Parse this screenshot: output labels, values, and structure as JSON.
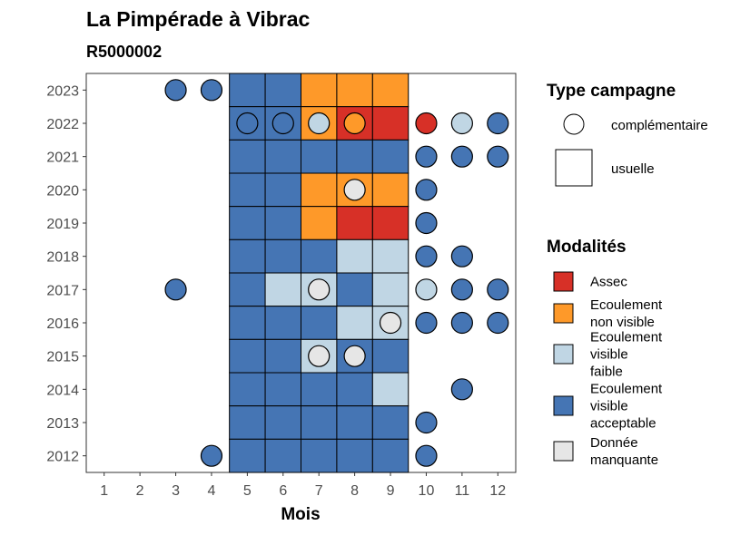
{
  "colors": {
    "Assec": "#d73027",
    "Ecoulement non visible": "#fe9929",
    "Ecoulement visible faible": "#c0d6e4",
    "Ecoulement visible acceptable": "#4575b4",
    "Donnée manquante": "#e6e6e6"
  },
  "chart_data": {
    "type": "heatmap",
    "title": "La Pimpérade à Vibrac",
    "subtitle": "R5000002",
    "xlabel": "Mois",
    "ylabel": "",
    "x_ticks": [
      "1",
      "2",
      "3",
      "4",
      "5",
      "6",
      "7",
      "8",
      "9",
      "10",
      "11",
      "12"
    ],
    "y_ticks": [
      "2012",
      "2013",
      "2014",
      "2015",
      "2016",
      "2017",
      "2018",
      "2019",
      "2020",
      "2021",
      "2022",
      "2023"
    ],
    "xlim": [
      0.5,
      12.5
    ],
    "ylim": [
      2011.5,
      2023.5
    ],
    "legend_placement": "right",
    "legend_type_title": "Type campagne",
    "legend_type_items": [
      "complémentaire",
      "usuelle"
    ],
    "legend_mod_title": "Modalités",
    "legend_mod_items": [
      {
        "key": "Assec",
        "lines": [
          "Assec"
        ]
      },
      {
        "key": "Ecoulement non visible",
        "lines": [
          "Ecoulement",
          "non visible"
        ]
      },
      {
        "key": "Ecoulement visible faible",
        "lines": [
          "Ecoulement",
          "visible",
          "faible"
        ]
      },
      {
        "key": "Ecoulement visible acceptable",
        "lines": [
          "Ecoulement",
          "visible",
          "acceptable"
        ]
      },
      {
        "key": "Donnée manquante",
        "lines": [
          "Donnée",
          "manquante"
        ]
      }
    ],
    "usuelle": [
      {
        "year": 2023,
        "month": 5,
        "mod": "Ecoulement visible acceptable"
      },
      {
        "year": 2023,
        "month": 6,
        "mod": "Ecoulement visible acceptable"
      },
      {
        "year": 2023,
        "month": 7,
        "mod": "Ecoulement non visible"
      },
      {
        "year": 2023,
        "month": 8,
        "mod": "Ecoulement non visible"
      },
      {
        "year": 2023,
        "month": 9,
        "mod": "Ecoulement non visible"
      },
      {
        "year": 2022,
        "month": 5,
        "mod": "Ecoulement visible acceptable"
      },
      {
        "year": 2022,
        "month": 6,
        "mod": "Ecoulement visible acceptable"
      },
      {
        "year": 2022,
        "month": 7,
        "mod": "Ecoulement non visible"
      },
      {
        "year": 2022,
        "month": 8,
        "mod": "Assec"
      },
      {
        "year": 2022,
        "month": 9,
        "mod": "Assec"
      },
      {
        "year": 2021,
        "month": 5,
        "mod": "Ecoulement visible acceptable"
      },
      {
        "year": 2021,
        "month": 6,
        "mod": "Ecoulement visible acceptable"
      },
      {
        "year": 2021,
        "month": 7,
        "mod": "Ecoulement visible acceptable"
      },
      {
        "year": 2021,
        "month": 8,
        "mod": "Ecoulement visible acceptable"
      },
      {
        "year": 2021,
        "month": 9,
        "mod": "Ecoulement visible acceptable"
      },
      {
        "year": 2020,
        "month": 5,
        "mod": "Ecoulement visible acceptable"
      },
      {
        "year": 2020,
        "month": 6,
        "mod": "Ecoulement visible acceptable"
      },
      {
        "year": 2020,
        "month": 7,
        "mod": "Ecoulement non visible"
      },
      {
        "year": 2020,
        "month": 8,
        "mod": "Ecoulement non visible"
      },
      {
        "year": 2020,
        "month": 9,
        "mod": "Ecoulement non visible"
      },
      {
        "year": 2019,
        "month": 5,
        "mod": "Ecoulement visible acceptable"
      },
      {
        "year": 2019,
        "month": 6,
        "mod": "Ecoulement visible acceptable"
      },
      {
        "year": 2019,
        "month": 7,
        "mod": "Ecoulement non visible"
      },
      {
        "year": 2019,
        "month": 8,
        "mod": "Assec"
      },
      {
        "year": 2019,
        "month": 9,
        "mod": "Assec"
      },
      {
        "year": 2018,
        "month": 5,
        "mod": "Ecoulement visible acceptable"
      },
      {
        "year": 2018,
        "month": 6,
        "mod": "Ecoulement visible acceptable"
      },
      {
        "year": 2018,
        "month": 7,
        "mod": "Ecoulement visible acceptable"
      },
      {
        "year": 2018,
        "month": 8,
        "mod": "Ecoulement visible faible"
      },
      {
        "year": 2018,
        "month": 9,
        "mod": "Ecoulement visible faible"
      },
      {
        "year": 2017,
        "month": 5,
        "mod": "Ecoulement visible acceptable"
      },
      {
        "year": 2017,
        "month": 6,
        "mod": "Ecoulement visible faible"
      },
      {
        "year": 2017,
        "month": 7,
        "mod": "Ecoulement visible faible"
      },
      {
        "year": 2017,
        "month": 8,
        "mod": "Ecoulement visible acceptable"
      },
      {
        "year": 2017,
        "month": 9,
        "mod": "Ecoulement visible faible"
      },
      {
        "year": 2016,
        "month": 5,
        "mod": "Ecoulement visible acceptable"
      },
      {
        "year": 2016,
        "month": 6,
        "mod": "Ecoulement visible acceptable"
      },
      {
        "year": 2016,
        "month": 7,
        "mod": "Ecoulement visible acceptable"
      },
      {
        "year": 2016,
        "month": 8,
        "mod": "Ecoulement visible faible"
      },
      {
        "year": 2016,
        "month": 9,
        "mod": "Ecoulement visible faible"
      },
      {
        "year": 2015,
        "month": 5,
        "mod": "Ecoulement visible acceptable"
      },
      {
        "year": 2015,
        "month": 6,
        "mod": "Ecoulement visible acceptable"
      },
      {
        "year": 2015,
        "month": 7,
        "mod": "Ecoulement visible faible"
      },
      {
        "year": 2015,
        "month": 8,
        "mod": "Ecoulement visible acceptable"
      },
      {
        "year": 2015,
        "month": 9,
        "mod": "Ecoulement visible acceptable"
      },
      {
        "year": 2014,
        "month": 5,
        "mod": "Ecoulement visible acceptable"
      },
      {
        "year": 2014,
        "month": 6,
        "mod": "Ecoulement visible acceptable"
      },
      {
        "year": 2014,
        "month": 7,
        "mod": "Ecoulement visible acceptable"
      },
      {
        "year": 2014,
        "month": 8,
        "mod": "Ecoulement visible acceptable"
      },
      {
        "year": 2014,
        "month": 9,
        "mod": "Ecoulement visible faible"
      },
      {
        "year": 2013,
        "month": 5,
        "mod": "Ecoulement visible acceptable"
      },
      {
        "year": 2013,
        "month": 6,
        "mod": "Ecoulement visible acceptable"
      },
      {
        "year": 2013,
        "month": 7,
        "mod": "Ecoulement visible acceptable"
      },
      {
        "year": 2013,
        "month": 8,
        "mod": "Ecoulement visible acceptable"
      },
      {
        "year": 2013,
        "month": 9,
        "mod": "Ecoulement visible acceptable"
      },
      {
        "year": 2012,
        "month": 5,
        "mod": "Ecoulement visible acceptable"
      },
      {
        "year": 2012,
        "month": 6,
        "mod": "Ecoulement visible acceptable"
      },
      {
        "year": 2012,
        "month": 7,
        "mod": "Ecoulement visible acceptable"
      },
      {
        "year": 2012,
        "month": 8,
        "mod": "Ecoulement visible acceptable"
      },
      {
        "year": 2012,
        "month": 9,
        "mod": "Ecoulement visible acceptable"
      }
    ],
    "complementaire": [
      {
        "year": 2023,
        "month": 3,
        "mod": "Ecoulement visible acceptable"
      },
      {
        "year": 2023,
        "month": 4,
        "mod": "Ecoulement visible acceptable"
      },
      {
        "year": 2022,
        "month": 5,
        "mod": "Ecoulement visible acceptable"
      },
      {
        "year": 2022,
        "month": 6,
        "mod": "Ecoulement visible acceptable"
      },
      {
        "year": 2022,
        "month": 7,
        "mod": "Ecoulement visible faible"
      },
      {
        "year": 2022,
        "month": 8,
        "mod": "Ecoulement non visible"
      },
      {
        "year": 2022,
        "month": 10,
        "mod": "Assec"
      },
      {
        "year": 2022,
        "month": 11,
        "mod": "Ecoulement visible faible"
      },
      {
        "year": 2022,
        "month": 12,
        "mod": "Ecoulement visible acceptable"
      },
      {
        "year": 2021,
        "month": 10,
        "mod": "Ecoulement visible acceptable"
      },
      {
        "year": 2021,
        "month": 11,
        "mod": "Ecoulement visible acceptable"
      },
      {
        "year": 2021,
        "month": 12,
        "mod": "Ecoulement visible acceptable"
      },
      {
        "year": 2020,
        "month": 8,
        "mod": "Donnée manquante"
      },
      {
        "year": 2020,
        "month": 10,
        "mod": "Ecoulement visible acceptable"
      },
      {
        "year": 2019,
        "month": 10,
        "mod": "Ecoulement visible acceptable"
      },
      {
        "year": 2018,
        "month": 10,
        "mod": "Ecoulement visible acceptable"
      },
      {
        "year": 2018,
        "month": 11,
        "mod": "Ecoulement visible acceptable"
      },
      {
        "year": 2017,
        "month": 3,
        "mod": "Ecoulement visible acceptable"
      },
      {
        "year": 2017,
        "month": 7,
        "mod": "Donnée manquante"
      },
      {
        "year": 2017,
        "month": 10,
        "mod": "Ecoulement visible faible"
      },
      {
        "year": 2017,
        "month": 11,
        "mod": "Ecoulement visible acceptable"
      },
      {
        "year": 2017,
        "month": 12,
        "mod": "Ecoulement visible acceptable"
      },
      {
        "year": 2016,
        "month": 9,
        "mod": "Donnée manquante"
      },
      {
        "year": 2016,
        "month": 10,
        "mod": "Ecoulement visible acceptable"
      },
      {
        "year": 2016,
        "month": 11,
        "mod": "Ecoulement visible acceptable"
      },
      {
        "year": 2016,
        "month": 12,
        "mod": "Ecoulement visible acceptable"
      },
      {
        "year": 2015,
        "month": 7,
        "mod": "Donnée manquante"
      },
      {
        "year": 2015,
        "month": 8,
        "mod": "Donnée manquante"
      },
      {
        "year": 2014,
        "month": 11,
        "mod": "Ecoulement visible acceptable"
      },
      {
        "year": 2013,
        "month": 10,
        "mod": "Ecoulement visible acceptable"
      },
      {
        "year": 2012,
        "month": 4,
        "mod": "Ecoulement visible acceptable"
      },
      {
        "year": 2012,
        "month": 10,
        "mod": "Ecoulement visible acceptable"
      }
    ]
  }
}
